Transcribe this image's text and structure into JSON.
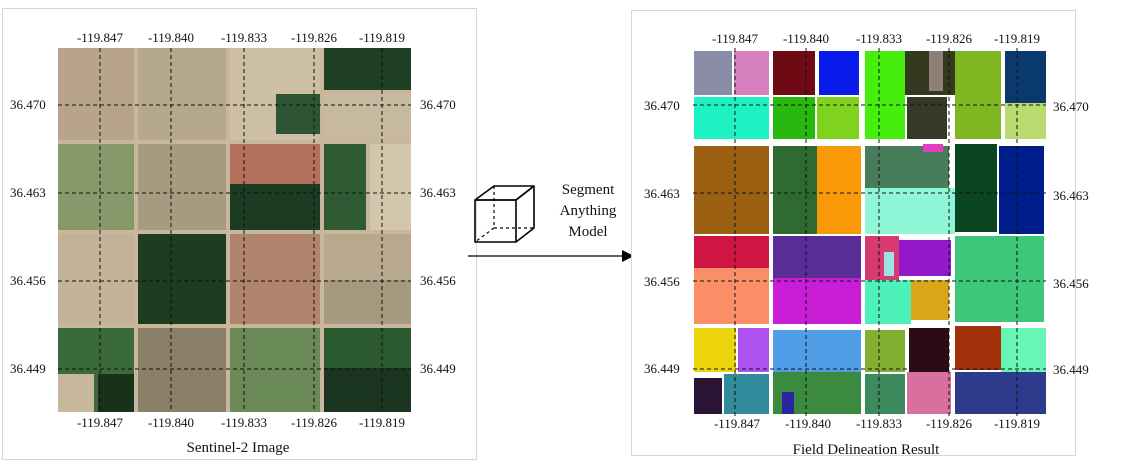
{
  "left_figure": {
    "caption": "Sentinel-2 Image",
    "lon_labels": [
      "-119.847",
      "-119.840",
      "-119.833",
      "-119.826",
      "-119.819"
    ],
    "lat_labels": [
      "36.470",
      "36.463",
      "36.456",
      "36.449"
    ]
  },
  "right_figure": {
    "caption": "Field Delineation Result",
    "lon_labels": [
      "-119.847",
      "-119.840",
      "-119.833",
      "-119.826",
      "-119.819"
    ],
    "lat_labels": [
      "36.470",
      "36.463",
      "36.456",
      "36.449"
    ]
  },
  "model": {
    "line1": "Segment",
    "line2": "Anything",
    "line3": "Model",
    "icon": "cube-icon"
  },
  "colors": {
    "arrow": "#000000",
    "grid": "#111111"
  }
}
